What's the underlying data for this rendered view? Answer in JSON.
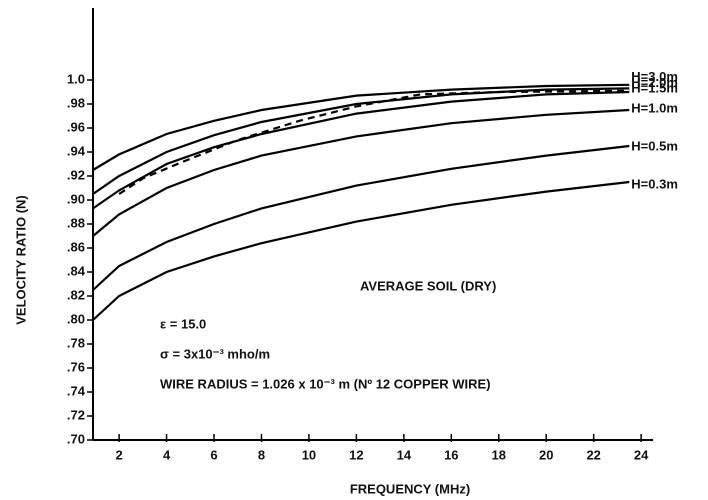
{
  "chart_data": {
    "type": "line",
    "xlabel": "FREQUENCY (MHz)",
    "ylabel": "VELOCITY RATIO (N)",
    "x": [
      0.9,
      2,
      4,
      6,
      8,
      12,
      16,
      20,
      23.5
    ],
    "series": [
      {
        "name": "H=3.0m",
        "color": "#000000",
        "values": [
          0.925,
          0.938,
          0.955,
          0.966,
          0.975,
          0.987,
          0.992,
          0.995,
          0.996
        ]
      },
      {
        "name": "H=2.0m",
        "color": "#000000",
        "values": [
          0.905,
          0.92,
          0.94,
          0.954,
          0.965,
          0.98,
          0.988,
          0.992,
          0.993
        ]
      },
      {
        "name": "H=1.5m",
        "color": "#000000",
        "values": [
          0.893,
          0.908,
          0.93,
          0.944,
          0.955,
          0.972,
          0.982,
          0.988,
          0.99
        ]
      },
      {
        "name": "H=1.0m",
        "color": "#000000",
        "values": [
          0.87,
          0.888,
          0.91,
          0.925,
          0.937,
          0.953,
          0.964,
          0.971,
          0.975
        ]
      },
      {
        "name": "H=0.5m",
        "color": "#000000",
        "values": [
          0.825,
          0.845,
          0.865,
          0.88,
          0.893,
          0.912,
          0.926,
          0.937,
          0.945
        ]
      },
      {
        "name": "H=0.3m",
        "color": "#000000",
        "values": [
          0.8,
          0.82,
          0.84,
          0.853,
          0.864,
          0.882,
          0.896,
          0.907,
          0.915
        ]
      },
      {
        "color": "#000000",
        "dashed": true,
        "x": [
          2,
          3,
          4.7,
          7,
          9.6,
          12,
          14.7,
          18,
          23.5
        ],
        "values": [
          0.905,
          0.918,
          0.932,
          0.95,
          0.966,
          0.978,
          0.988,
          0.99,
          0.991
        ]
      }
    ],
    "annotations": [
      "AVERAGE SOIL (DRY)",
      "ε = 15.0",
      "σ = 3x10⁻³ mho/m",
      "WIRE RADIUS = 1.026 x 10⁻³ m (Nº 12 COPPER WIRE)"
    ],
    "xlim": [
      0.9,
      24.5
    ],
    "xticks": [
      2,
      4,
      6,
      8,
      10,
      12,
      14,
      16,
      18,
      20,
      22,
      24
    ],
    "ylim": [
      0.7,
      1.06
    ],
    "yticks": [
      {
        "value": 0.7,
        "label": ".70"
      },
      {
        "value": 0.72,
        "label": ".72"
      },
      {
        "value": 0.74,
        "label": ".74"
      },
      {
        "value": 0.76,
        "label": ".76"
      },
      {
        "value": 0.78,
        "label": ".78"
      },
      {
        "value": 0.8,
        "label": ".80"
      },
      {
        "value": 0.82,
        "label": ".82"
      },
      {
        "value": 0.84,
        "label": ".84"
      },
      {
        "value": 0.86,
        "label": ".86"
      },
      {
        "value": 0.88,
        "label": ".88"
      },
      {
        "value": 0.9,
        "label": ".90"
      },
      {
        "value": 0.92,
        "label": ".92"
      },
      {
        "value": 0.94,
        "label": ".94"
      },
      {
        "value": 0.96,
        "label": ".96"
      },
      {
        "value": 0.98,
        "label": ".98"
      },
      {
        "value": 1.0,
        "label": "1.0"
      }
    ]
  }
}
